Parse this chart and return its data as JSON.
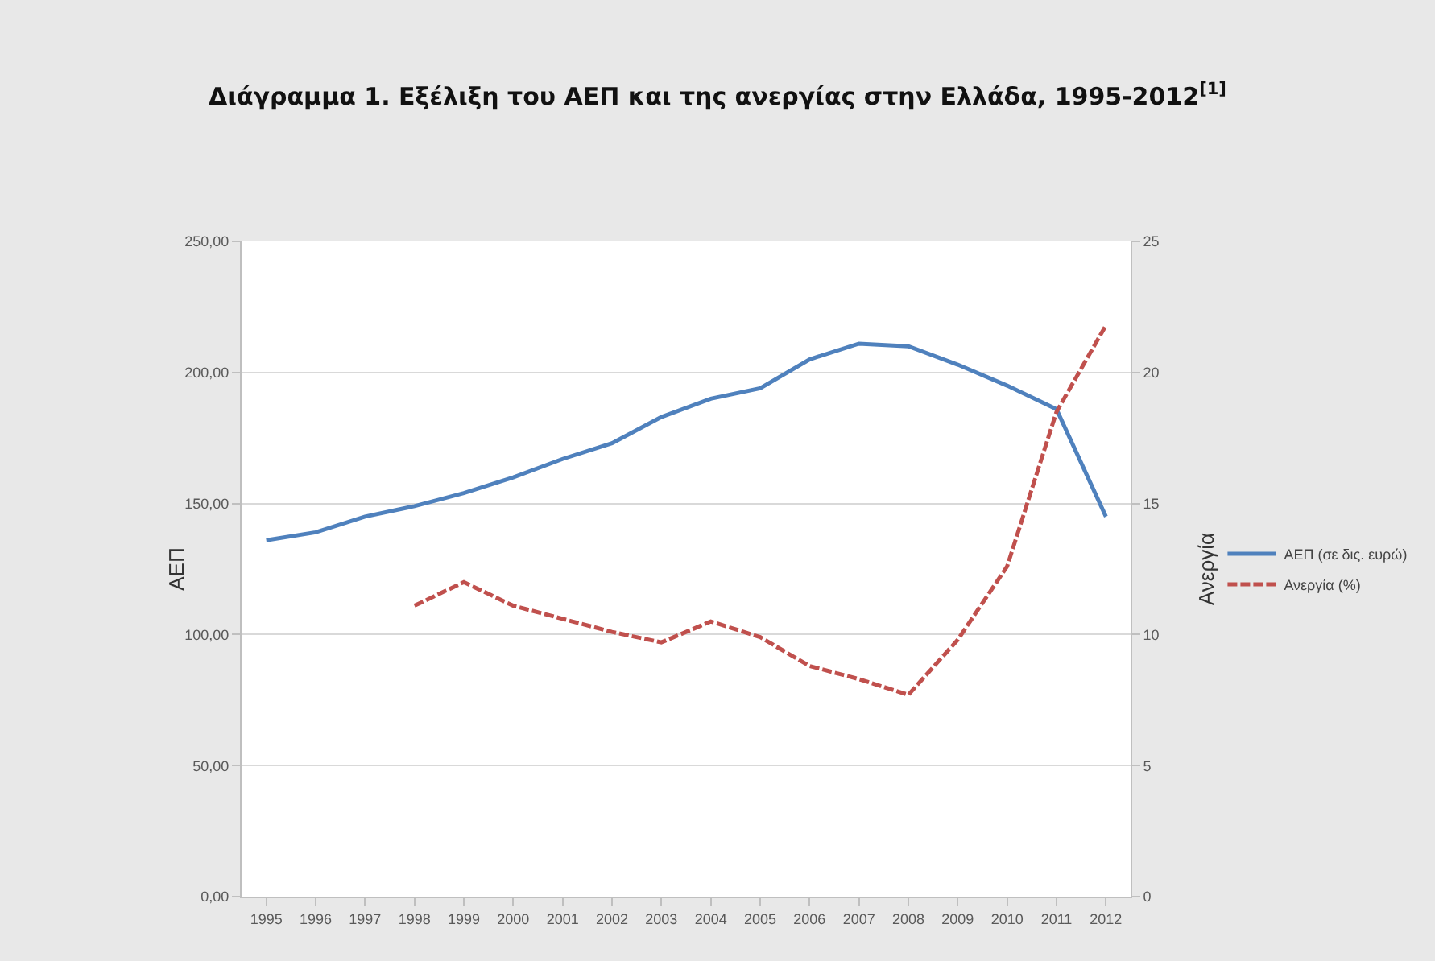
{
  "chart_data": {
    "type": "line",
    "title": "Διάγραμμα 1. Εξέλιξη του ΑΕΠ και της ανεργίας στην Ελλάδα, 1995-2012$^{[1]}$",
    "ylabel": "ΑΕΠ",
    "y2label": "Ανεργία",
    "categories": [
      "1995",
      "1996",
      "1997",
      "1998",
      "1999",
      "2000",
      "2001",
      "2002",
      "2003",
      "2004",
      "2005",
      "2006",
      "2007",
      "2008",
      "2009",
      "2010",
      "2011",
      "2012"
    ],
    "series": [
      {
        "name": "ΑΕΠ (σε δις. ευρώ)",
        "color": "#4f81bd",
        "line_style": "solid",
        "values": [
          136,
          139,
          145,
          149,
          154,
          160,
          167,
          173,
          183,
          190,
          194,
          205,
          211,
          210,
          203,
          195,
          186,
          145
        ]
      },
      {
        "name": "Ανεργία (%)",
        "color": "#c0504d",
        "line_style": "dashed",
        "axis": "y2",
        "values": [
          null,
          null,
          null,
          11.1,
          12.0,
          11.1,
          10.6,
          10.1,
          9.7,
          10.5,
          9.9,
          8.8,
          8.3,
          7.7,
          9.8,
          12.6,
          18.5,
          21.8
        ]
      }
    ],
    "ylim": [
      0,
      250
    ],
    "yticks": [
      {
        "value": 0,
        "label": "0,00"
      },
      {
        "value": 50,
        "label": "50,00"
      },
      {
        "value": 100,
        "label": "100,00"
      },
      {
        "value": 150,
        "label": "150,00"
      },
      {
        "value": 200,
        "label": "200,00"
      },
      {
        "value": 250,
        "label": "250,00"
      }
    ],
    "y2lim": [
      0,
      25
    ],
    "y2ticks": [
      0,
      5,
      10,
      15,
      20,
      25
    ],
    "grid": "y",
    "legend": "right",
    "marker": "none"
  }
}
